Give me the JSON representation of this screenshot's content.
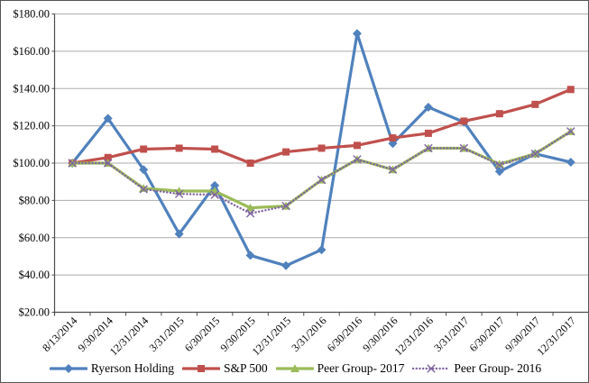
{
  "chart_data": {
    "type": "line",
    "title": "",
    "xlabel": "",
    "ylabel": "",
    "categories": [
      "8/13/2014",
      "9/30/2014",
      "12/31/2014",
      "3/31/2015",
      "6/30/2015",
      "9/30/2015",
      "12/31/2015",
      "3/31/2016",
      "6/30/2016",
      "9/30/2016",
      "12/31/2016",
      "3/31/2017",
      "6/30/2017",
      "9/30/2017",
      "12/31/2017"
    ],
    "series": [
      {
        "name": "Ryerson Holding",
        "color": "#4F81BD",
        "marker": "diamond",
        "line_style": "solid",
        "values": [
          100,
          124,
          96.5,
          62,
          88,
          50.5,
          45,
          53.5,
          169.5,
          110.5,
          130,
          122,
          95.5,
          105,
          100.5
        ]
      },
      {
        "name": "S&P 500",
        "color": "#C0504D",
        "marker": "square",
        "line_style": "solid",
        "values": [
          100,
          103,
          107.5,
          108,
          107.5,
          100,
          106,
          108,
          109.5,
          113.5,
          116,
          122.5,
          126.5,
          131.5,
          139.5
        ]
      },
      {
        "name": "Peer Group- 2017",
        "color": "#9BBB59",
        "marker": "triangle",
        "line_style": "solid",
        "values": [
          100,
          100,
          86.5,
          85,
          85,
          76,
          77,
          91,
          102,
          96.5,
          108,
          108,
          99.5,
          105,
          117
        ]
      },
      {
        "name": "Peer Group- 2016",
        "color": "#8064A2",
        "marker": "x",
        "line_style": "dotted",
        "values": [
          100,
          100,
          86,
          83.5,
          83,
          73,
          77,
          91,
          102,
          96.5,
          108,
          108,
          99,
          105,
          117
        ]
      }
    ],
    "ylim": [
      20,
      180
    ],
    "y_tick_step": 20,
    "y_ticks": [
      "$180.00",
      "$160.00",
      "$140.00",
      "$120.00",
      "$100.00",
      "$80.00",
      "$60.00",
      "$40.00",
      "$20.00"
    ],
    "grid": true,
    "x_tick_rotation": 45,
    "legend_position": "bottom"
  },
  "colors": {
    "gridline": "#ABABAB",
    "axis": "#4D4D4D",
    "text": "#000000",
    "background": "#FFFFFF",
    "chart_border": "#555555"
  }
}
